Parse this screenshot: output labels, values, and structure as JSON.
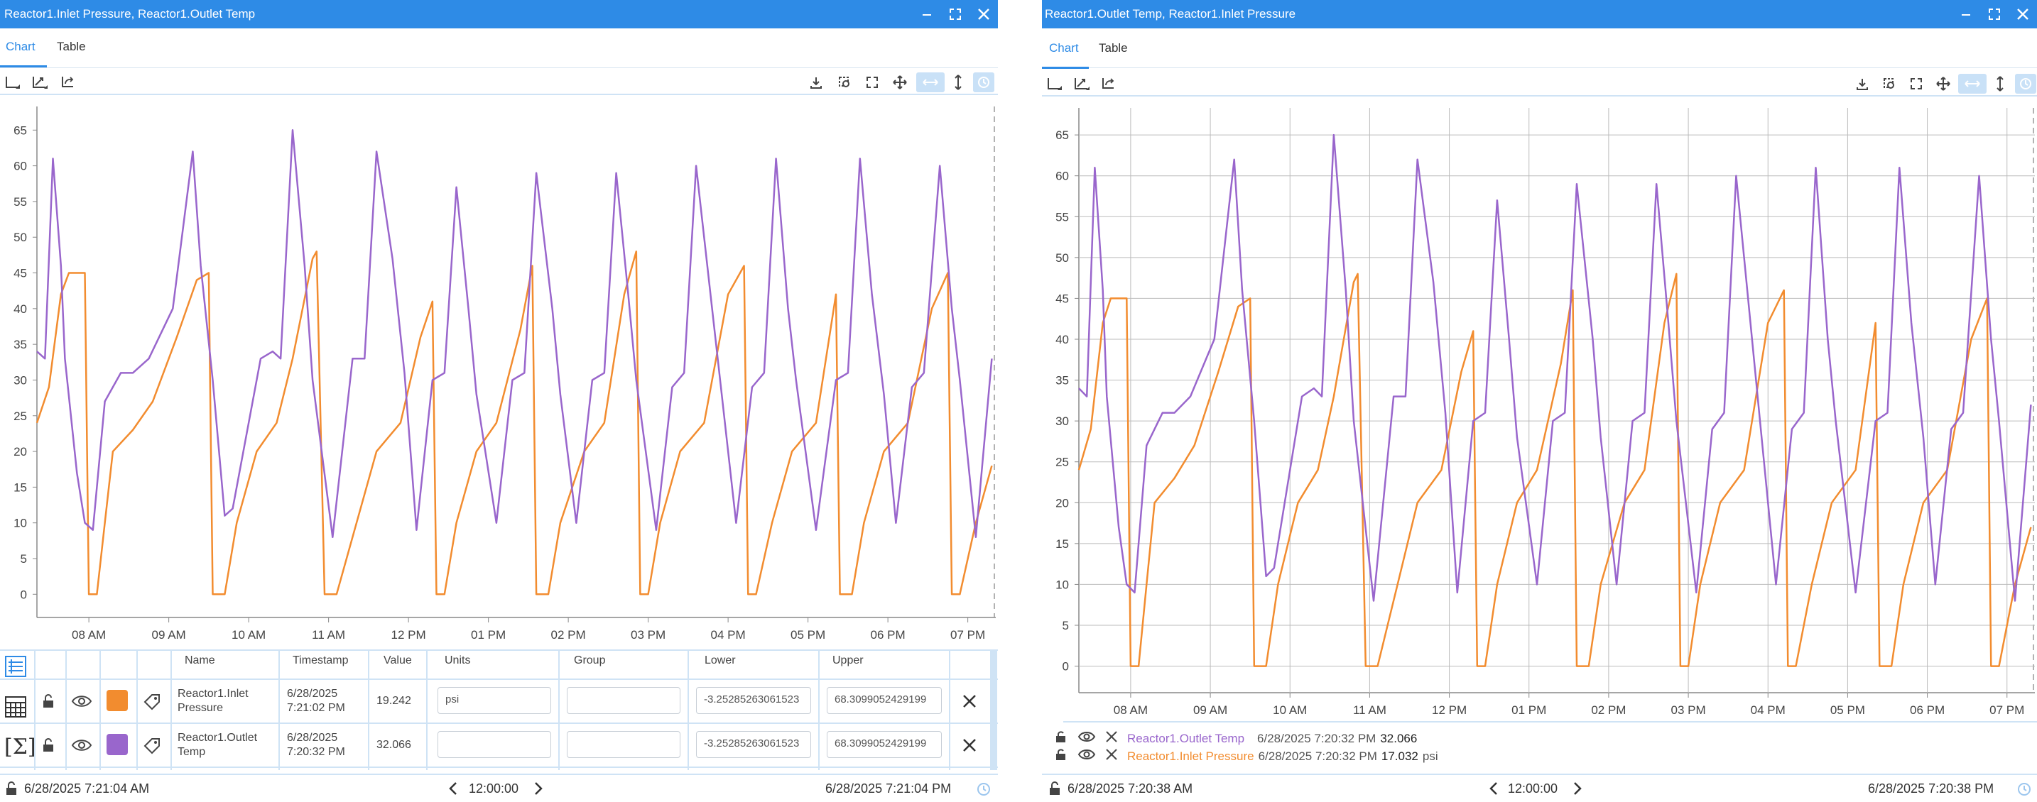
{
  "windows": [
    {
      "title": "Reactor1.Inlet Pressure, Reactor1.Outlet Temp",
      "tabs": [
        {
          "label": "Chart",
          "active": true
        },
        {
          "label": "Table",
          "active": false
        }
      ],
      "table": {
        "columns": [
          "Name",
          "Timestamp",
          "Value",
          "Units",
          "Group",
          "Lower",
          "Upper"
        ],
        "rows": [
          {
            "name": "Reactor1.Inlet Pressure",
            "timestamp": "6/28/2025 7:21:02 PM",
            "value": "19.242",
            "units": "psi",
            "group": "",
            "lower": "-3.25285263061523",
            "upper": "68.3099052429199",
            "color": "#f28c2f"
          },
          {
            "name": "Reactor1.Outlet Temp",
            "timestamp": "6/28/2025 7:20:32 PM",
            "value": "32.066",
            "units": "",
            "group": "",
            "lower": "-3.25285263061523",
            "upper": "68.3099052429199",
            "color": "#9966cc"
          }
        ]
      },
      "status": {
        "start": "6/28/2025 7:21:04 AM",
        "duration": "12:00:00",
        "end": "6/28/2025 7:21:04 PM"
      }
    },
    {
      "title": "Reactor1.Outlet Temp, Reactor1.Inlet Pressure",
      "tabs": [
        {
          "label": "Chart",
          "active": true
        },
        {
          "label": "Table",
          "active": false
        }
      ],
      "legend": [
        {
          "name": "Reactor1.Outlet Temp",
          "timestamp": "6/28/2025 7:20:32 PM",
          "value": "32.066",
          "units": "",
          "color": "#9966cc"
        },
        {
          "name": "Reactor1.Inlet Pressure",
          "timestamp": "6/28/2025 7:20:32 PM",
          "value": "17.032",
          "units": "psi",
          "color": "#f28c2f"
        }
      ],
      "status": {
        "start": "6/28/2025 7:20:38 AM",
        "duration": "12:00:00",
        "end": "6/28/2025 7:20:38 PM"
      }
    }
  ],
  "icons": [
    "minimize-icon",
    "maximize-icon",
    "close-icon",
    "axis-icon",
    "trend-icon",
    "reset-axis-icon",
    "download-icon",
    "zoom-box-icon",
    "fullscreen-icon",
    "pan-icon",
    "horizontal-zoom-icon",
    "vertical-zoom-icon",
    "live-icon",
    "lock-icon",
    "eye-icon",
    "tag-icon",
    "remove-icon",
    "chevron-left-icon",
    "chevron-right-icon"
  ],
  "chart_data": [
    {
      "type": "line",
      "title": "",
      "xlabel": "",
      "ylabel": "",
      "x_ticks": [
        "08 AM",
        "09 AM",
        "10 AM",
        "11 AM",
        "12 PM",
        "01 PM",
        "02 PM",
        "03 PM",
        "04 PM",
        "05 PM",
        "06 PM",
        "07 PM"
      ],
      "x_range": [
        "7:21 AM",
        "7:21 PM"
      ],
      "y_ticks": [
        0,
        5,
        10,
        15,
        20,
        25,
        30,
        35,
        40,
        45,
        50,
        55,
        60,
        65
      ],
      "ylim": [
        -3.25,
        68.31
      ],
      "grid": false,
      "series": [
        {
          "name": "Reactor1.Outlet Temp",
          "color": "#9966cc",
          "x": [
            7.35,
            7.45,
            7.55,
            7.65,
            7.7,
            7.85,
            7.95,
            8.05,
            8.2,
            8.4,
            8.55,
            8.75,
            9.05,
            9.3,
            9.4,
            9.55,
            9.7,
            9.8,
            10.15,
            10.3,
            10.4,
            10.55,
            10.7,
            10.8,
            11.05,
            11.3,
            11.45,
            11.6,
            11.8,
            11.95,
            12.1,
            12.3,
            12.45,
            12.6,
            12.75,
            12.85,
            13.1,
            13.3,
            13.45,
            13.6,
            13.8,
            13.9,
            14.1,
            14.3,
            14.45,
            14.6,
            14.75,
            14.85,
            15.1,
            15.3,
            15.45,
            15.6,
            15.8,
            15.9,
            16.1,
            16.3,
            16.45,
            16.6,
            16.75,
            16.85,
            17.1,
            17.35,
            17.5,
            17.65,
            17.8,
            17.95,
            18.1,
            18.3,
            18.45,
            18.65,
            18.8,
            18.9,
            19.1,
            19.3
          ],
          "y": [
            34,
            33,
            61,
            46,
            33,
            17,
            10,
            9,
            27,
            31,
            31,
            33,
            40,
            62,
            46,
            30,
            11,
            12,
            33,
            34,
            33,
            65,
            46,
            30,
            8,
            33,
            33,
            62,
            47,
            31,
            9,
            30,
            31,
            57,
            40,
            28,
            10,
            30,
            31,
            59,
            40,
            28,
            10,
            30,
            31,
            59,
            42,
            30,
            9,
            29,
            31,
            60,
            40,
            30,
            10,
            29,
            31,
            61,
            40,
            30,
            9,
            30,
            31,
            61,
            42,
            28,
            10,
            29,
            31,
            60,
            40,
            30,
            8,
            33
          ]
        },
        {
          "name": "Reactor1.Inlet Pressure",
          "color": "#f28c2f",
          "x": [
            7.35,
            7.5,
            7.65,
            7.75,
            7.95,
            8.0,
            8.1,
            8.2,
            8.3,
            8.55,
            8.8,
            9.1,
            9.35,
            9.5,
            9.55,
            9.7,
            9.85,
            10.1,
            10.35,
            10.55,
            10.8,
            10.85,
            10.95,
            11.1,
            11.35,
            11.6,
            11.9,
            12.15,
            12.3,
            12.35,
            12.45,
            12.6,
            12.85,
            13.1,
            13.4,
            13.55,
            13.6,
            13.75,
            13.9,
            14.2,
            14.45,
            14.7,
            14.85,
            14.9,
            15.0,
            15.15,
            15.4,
            15.7,
            16.0,
            16.2,
            16.25,
            16.35,
            16.55,
            16.8,
            17.1,
            17.35,
            17.4,
            17.55,
            17.7,
            17.95,
            18.25,
            18.55,
            18.75,
            18.8,
            18.9,
            19.1,
            19.3
          ],
          "y": [
            24,
            29,
            42,
            45,
            45,
            0,
            0,
            10,
            20,
            23,
            27,
            36,
            44,
            45,
            0,
            0,
            10,
            20,
            24,
            33,
            47,
            48,
            0,
            0,
            10,
            20,
            24,
            36,
            41,
            0,
            0,
            10,
            20,
            24,
            37,
            46,
            0,
            0,
            10,
            20,
            24,
            42,
            48,
            0,
            0,
            10,
            20,
            24,
            42,
            46,
            0,
            0,
            10,
            20,
            24,
            42,
            0,
            0,
            10,
            20,
            24,
            40,
            45,
            0,
            0,
            10,
            18
          ]
        }
      ]
    },
    {
      "type": "line",
      "title": "",
      "xlabel": "",
      "ylabel": "",
      "x_ticks": [
        "08 AM",
        "09 AM",
        "10 AM",
        "11 AM",
        "12 PM",
        "01 PM",
        "02 PM",
        "03 PM",
        "04 PM",
        "05 PM",
        "06 PM",
        "07 PM"
      ],
      "x_range": [
        "7:21 AM",
        "7:21 PM"
      ],
      "y_ticks": [
        0,
        5,
        10,
        15,
        20,
        25,
        30,
        35,
        40,
        45,
        50,
        55,
        60,
        65
      ],
      "ylim": [
        -3.25,
        68.31
      ],
      "grid": true,
      "series": [
        {
          "name": "Reactor1.Outlet Temp",
          "color": "#9966cc",
          "x": [
            7.35,
            7.45,
            7.55,
            7.65,
            7.7,
            7.85,
            7.95,
            8.05,
            8.2,
            8.4,
            8.55,
            8.75,
            9.05,
            9.3,
            9.4,
            9.55,
            9.7,
            9.8,
            10.15,
            10.3,
            10.4,
            10.55,
            10.7,
            10.8,
            11.05,
            11.3,
            11.45,
            11.6,
            11.8,
            11.95,
            12.1,
            12.3,
            12.45,
            12.6,
            12.75,
            12.85,
            13.1,
            13.3,
            13.45,
            13.6,
            13.8,
            13.9,
            14.1,
            14.3,
            14.45,
            14.6,
            14.75,
            14.85,
            15.1,
            15.3,
            15.45,
            15.6,
            15.8,
            15.9,
            16.1,
            16.3,
            16.45,
            16.6,
            16.75,
            16.85,
            17.1,
            17.35,
            17.5,
            17.65,
            17.8,
            17.95,
            18.1,
            18.3,
            18.45,
            18.65,
            18.8,
            18.9,
            19.1,
            19.3
          ],
          "y": [
            34,
            33,
            61,
            46,
            33,
            17,
            10,
            9,
            27,
            31,
            31,
            33,
            40,
            62,
            46,
            30,
            11,
            12,
            33,
            34,
            33,
            65,
            46,
            30,
            8,
            33,
            33,
            62,
            47,
            31,
            9,
            30,
            31,
            57,
            40,
            28,
            10,
            30,
            31,
            59,
            40,
            28,
            10,
            30,
            31,
            59,
            42,
            30,
            9,
            29,
            31,
            60,
            40,
            30,
            10,
            29,
            31,
            61,
            40,
            30,
            9,
            30,
            31,
            61,
            42,
            28,
            10,
            29,
            31,
            60,
            40,
            30,
            8,
            32
          ]
        },
        {
          "name": "Reactor1.Inlet Pressure",
          "color": "#f28c2f",
          "x": [
            7.35,
            7.5,
            7.65,
            7.75,
            7.95,
            8.0,
            8.1,
            8.2,
            8.3,
            8.55,
            8.8,
            9.1,
            9.35,
            9.5,
            9.55,
            9.7,
            9.85,
            10.1,
            10.35,
            10.55,
            10.8,
            10.85,
            10.95,
            11.1,
            11.35,
            11.6,
            11.9,
            12.15,
            12.3,
            12.35,
            12.45,
            12.6,
            12.85,
            13.1,
            13.4,
            13.55,
            13.6,
            13.75,
            13.9,
            14.2,
            14.45,
            14.7,
            14.85,
            14.9,
            15.0,
            15.15,
            15.4,
            15.7,
            16.0,
            16.2,
            16.25,
            16.35,
            16.55,
            16.8,
            17.1,
            17.35,
            17.4,
            17.55,
            17.7,
            17.95,
            18.25,
            18.55,
            18.75,
            18.8,
            18.9,
            19.1,
            19.3
          ],
          "y": [
            24,
            29,
            42,
            45,
            45,
            0,
            0,
            10,
            20,
            23,
            27,
            36,
            44,
            45,
            0,
            0,
            10,
            20,
            24,
            33,
            47,
            48,
            0,
            0,
            10,
            20,
            24,
            36,
            41,
            0,
            0,
            10,
            20,
            24,
            37,
            46,
            0,
            0,
            10,
            20,
            24,
            42,
            48,
            0,
            0,
            10,
            20,
            24,
            42,
            46,
            0,
            0,
            10,
            20,
            24,
            42,
            0,
            0,
            10,
            20,
            24,
            40,
            45,
            0,
            0,
            10,
            17
          ]
        }
      ]
    }
  ]
}
